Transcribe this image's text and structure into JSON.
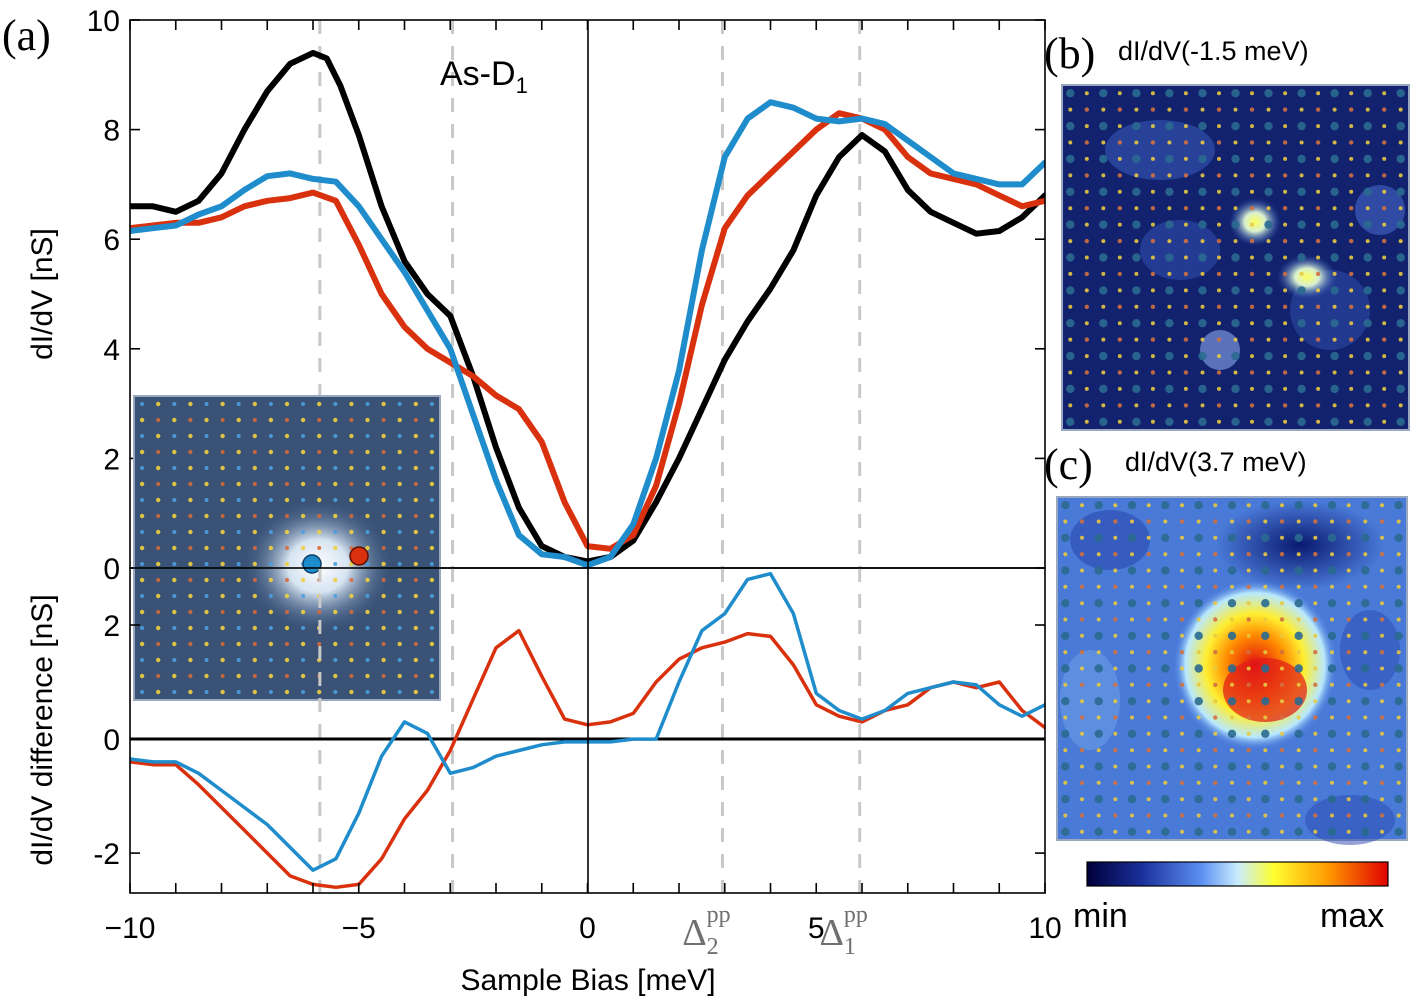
{
  "panel_labels": {
    "a": "(a)",
    "b": "(b)",
    "c": "(c)"
  },
  "map_titles": {
    "b": "dI/dV(-1.5 meV)",
    "c": "dI/dV(3.7 meV)"
  },
  "colorbar": {
    "min_label": "min",
    "max_label": "max",
    "colors": [
      "#00003a",
      "#1a2f9a",
      "#5b8ff0",
      "#c8ecff",
      "#ffff30",
      "#ff9a00",
      "#e00000"
    ]
  },
  "colors": {
    "black": "#000000",
    "red": "#d9310e",
    "blue": "#1f8ccc",
    "dashed": "#c8c8c8",
    "inset_blue_dot": "#1f8ccc",
    "inset_red_dot": "#d9310e"
  },
  "chart_data": [
    {
      "type": "line",
      "name": "top",
      "title": "As-D",
      "title_sub": "1",
      "ylabel": "dI/dV [nS]",
      "xlim": [
        -10,
        10
      ],
      "ylim": [
        0,
        10
      ],
      "yticks": [
        0,
        2,
        4,
        6,
        8,
        10
      ],
      "dashed_x": [
        -5.85,
        -2.95,
        2.95,
        5.95
      ],
      "series": [
        {
          "name": "black",
          "color": "#000000",
          "x": [
            -10,
            -9.5,
            -9,
            -8.5,
            -8,
            -7.5,
            -7,
            -6.5,
            -6,
            -5.7,
            -5.4,
            -5,
            -4.5,
            -4,
            -3.5,
            -3,
            -2.5,
            -2,
            -1.5,
            -1,
            -0.5,
            0,
            0.5,
            1,
            1.5,
            2,
            2.5,
            3,
            3.5,
            4,
            4.5,
            5,
            5.5,
            6,
            6.5,
            7,
            7.5,
            8,
            8.5,
            9,
            9.5,
            10
          ],
          "y": [
            6.6,
            6.6,
            6.5,
            6.7,
            7.2,
            8.0,
            8.7,
            9.2,
            9.4,
            9.3,
            8.8,
            7.9,
            6.6,
            5.6,
            5.0,
            4.6,
            3.5,
            2.2,
            1.1,
            0.4,
            0.2,
            0.12,
            0.2,
            0.5,
            1.2,
            2.0,
            2.9,
            3.8,
            4.5,
            5.1,
            5.8,
            6.8,
            7.5,
            7.9,
            7.6,
            6.9,
            6.5,
            6.3,
            6.1,
            6.15,
            6.4,
            6.8
          ]
        },
        {
          "name": "red",
          "color": "#d9310e",
          "x": [
            -10,
            -9.5,
            -9,
            -8.5,
            -8,
            -7.5,
            -7,
            -6.5,
            -6,
            -5.5,
            -5,
            -4.5,
            -4,
            -3.5,
            -3,
            -2.5,
            -2,
            -1.5,
            -1,
            -0.5,
            0,
            0.5,
            1,
            1.5,
            2,
            2.5,
            3,
            3.5,
            4,
            4.5,
            5,
            5.5,
            6,
            6.5,
            7,
            7.5,
            8,
            8.5,
            9,
            9.5,
            10
          ],
          "y": [
            6.2,
            6.25,
            6.3,
            6.3,
            6.4,
            6.6,
            6.7,
            6.75,
            6.85,
            6.7,
            5.9,
            5.0,
            4.4,
            4.0,
            3.75,
            3.5,
            3.15,
            2.9,
            2.3,
            1.2,
            0.4,
            0.35,
            0.6,
            1.5,
            3.0,
            4.8,
            6.2,
            6.8,
            7.2,
            7.6,
            8.0,
            8.3,
            8.2,
            8.0,
            7.5,
            7.2,
            7.1,
            7.0,
            6.8,
            6.6,
            6.7
          ]
        },
        {
          "name": "blue",
          "color": "#1f8ccc",
          "x": [
            -10,
            -9.5,
            -9,
            -8.5,
            -8,
            -7.5,
            -7,
            -6.5,
            -6,
            -5.5,
            -5,
            -4.5,
            -4,
            -3.5,
            -3,
            -2.5,
            -2,
            -1.5,
            -1,
            -0.5,
            0,
            0.5,
            1,
            1.5,
            2,
            2.5,
            3,
            3.5,
            4,
            4.5,
            5,
            5.5,
            6,
            6.5,
            7,
            7.5,
            8,
            8.5,
            9,
            9.5,
            10
          ],
          "y": [
            6.15,
            6.2,
            6.25,
            6.45,
            6.6,
            6.9,
            7.15,
            7.2,
            7.1,
            7.05,
            6.6,
            6.0,
            5.4,
            4.7,
            4.0,
            2.8,
            1.6,
            0.6,
            0.25,
            0.2,
            0.05,
            0.2,
            0.8,
            2.0,
            3.6,
            5.8,
            7.5,
            8.2,
            8.5,
            8.4,
            8.2,
            8.15,
            8.2,
            8.1,
            7.8,
            7.5,
            7.2,
            7.1,
            7.0,
            7.0,
            7.4
          ]
        }
      ]
    },
    {
      "type": "line",
      "name": "bottom",
      "ylabel": "dI/dV difference [nS]",
      "xlabel": "Sample Bias [meV]",
      "xlim": [
        -10,
        10
      ],
      "ylim": [
        -2.7,
        3.0
      ],
      "yticks": [
        -2,
        0,
        2
      ],
      "xticks": [
        -10,
        -5,
        0,
        5,
        10
      ],
      "xtick_labels": [
        "−10",
        "−5",
        "0",
        "5",
        "10"
      ],
      "dashed_x": [
        -5.85,
        -2.95,
        2.95,
        5.95
      ],
      "gap_labels": [
        {
          "x": 2.95,
          "base": "Δ",
          "sub": "2",
          "sup": "pp"
        },
        {
          "x": 5.95,
          "base": "Δ",
          "sub": "1",
          "sup": "pp"
        }
      ],
      "series": [
        {
          "name": "red",
          "color": "#d9310e",
          "x": [
            -10,
            -9.5,
            -9,
            -8.5,
            -8,
            -7.5,
            -7,
            -6.5,
            -6,
            -5.5,
            -5,
            -4.5,
            -4,
            -3.5,
            -3,
            -2.5,
            -2,
            -1.5,
            -1,
            -0.5,
            0,
            0.5,
            1,
            1.5,
            2,
            2.5,
            3,
            3.5,
            4,
            4.5,
            5,
            5.5,
            6,
            6.5,
            7,
            7.5,
            8,
            8.5,
            9,
            9.5,
            10
          ],
          "y": [
            -0.4,
            -0.45,
            -0.45,
            -0.8,
            -1.2,
            -1.6,
            -2.0,
            -2.4,
            -2.55,
            -2.6,
            -2.55,
            -2.1,
            -1.4,
            -0.9,
            -0.2,
            0.7,
            1.6,
            1.9,
            1.1,
            0.35,
            0.25,
            0.3,
            0.45,
            1.0,
            1.4,
            1.6,
            1.7,
            1.85,
            1.8,
            1.3,
            0.6,
            0.4,
            0.3,
            0.5,
            0.6,
            0.9,
            1.0,
            0.9,
            1.0,
            0.5,
            0.2
          ]
        },
        {
          "name": "blue",
          "color": "#1f8ccc",
          "x": [
            -10,
            -9.5,
            -9,
            -8.5,
            -8,
            -7.5,
            -7,
            -6.5,
            -6,
            -5.5,
            -5,
            -4.5,
            -4,
            -3.5,
            -3,
            -2.5,
            -2,
            -1.5,
            -1,
            -0.5,
            0,
            0.5,
            1,
            1.5,
            2,
            2.5,
            3,
            3.5,
            4,
            4.5,
            5,
            5.5,
            6,
            6.5,
            7,
            7.5,
            8,
            8.5,
            9,
            9.5,
            10
          ],
          "y": [
            -0.35,
            -0.4,
            -0.4,
            -0.6,
            -0.9,
            -1.2,
            -1.5,
            -1.9,
            -2.3,
            -2.1,
            -1.3,
            -0.3,
            0.3,
            0.1,
            -0.6,
            -0.5,
            -0.3,
            -0.2,
            -0.1,
            -0.05,
            -0.05,
            -0.05,
            0.0,
            0.0,
            1.0,
            1.9,
            2.2,
            2.8,
            2.9,
            2.2,
            0.8,
            0.5,
            0.35,
            0.5,
            0.8,
            0.9,
            1.0,
            0.95,
            0.6,
            0.4,
            0.6
          ]
        }
      ]
    }
  ]
}
